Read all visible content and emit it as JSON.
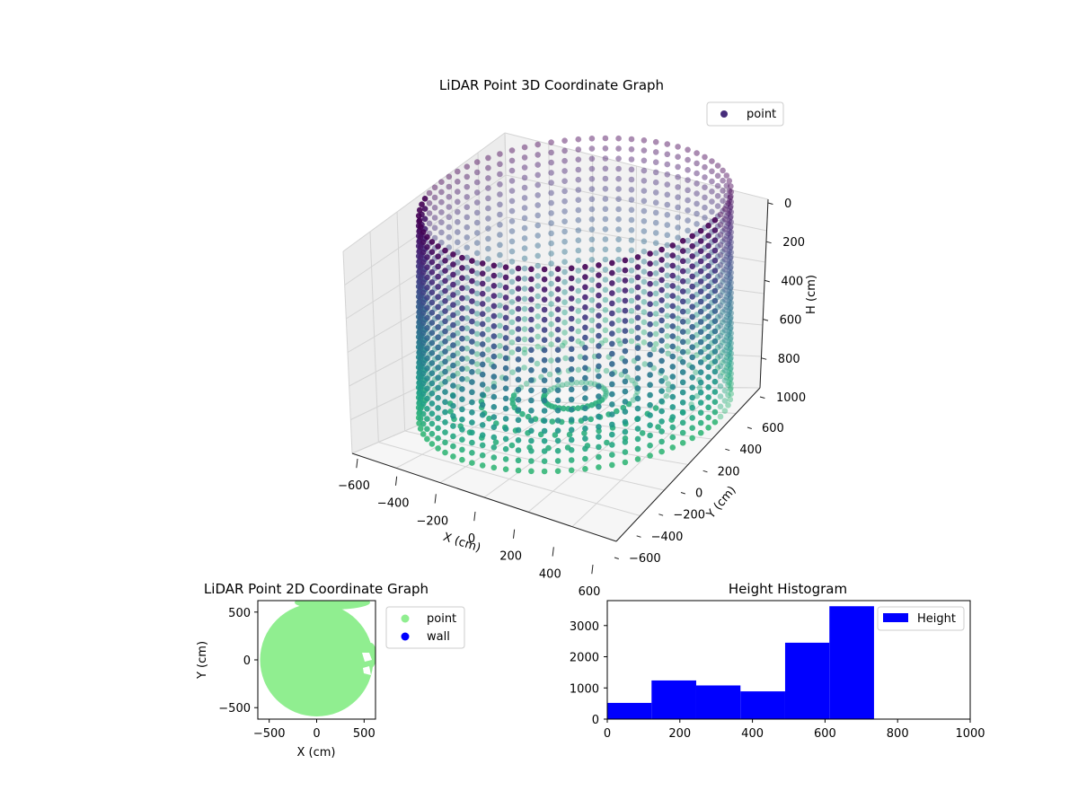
{
  "chart_data": [
    {
      "type": "scatter3d",
      "title": "LiDAR Point 3D Coordinate Graph",
      "xlabel": "X (cm)",
      "ylabel": "Y (cm)",
      "zlabel": "H (cm)",
      "xlim": [
        -600,
        600
      ],
      "ylim": [
        -600,
        600
      ],
      "zlim": [
        0,
        1000
      ],
      "z_inverted": true,
      "x_ticks": [
        "−600",
        "−400",
        "−200",
        "0",
        "200",
        "400",
        "600"
      ],
      "y_ticks": [
        "−600",
        "−400",
        "−200",
        "0",
        "200",
        "400",
        "600"
      ],
      "z_ticks": [
        "0",
        "200",
        "400",
        "600",
        "800",
        "1000"
      ],
      "legend": [
        {
          "name": "point",
          "color": "#472d7b"
        }
      ],
      "legend_position": "top-right",
      "colormap": "viridis",
      "shape": "cylindrical wall of points, radius about 600 cm, height 0 to 1000 cm"
    },
    {
      "type": "scatter",
      "title": "LiDAR Point 2D Coordinate Graph",
      "xlabel": "X (cm)",
      "ylabel": "Y (cm)",
      "xlim": [
        -620,
        620
      ],
      "ylim": [
        -620,
        620
      ],
      "x_ticks": [
        "−500",
        "0",
        "500"
      ],
      "y_ticks": [
        "500",
        "0",
        "−500"
      ],
      "legend": [
        {
          "name": "point",
          "color": "#90ee90"
        },
        {
          "name": "wall",
          "color": "#0000ff"
        }
      ],
      "legend_position": "outside-right",
      "shape": "filled disc of radius about 600 cm"
    },
    {
      "type": "histogram",
      "title": "Height Histogram",
      "xlim": [
        0,
        1000
      ],
      "ylim": [
        0,
        3800
      ],
      "x_ticks": [
        "0",
        "200",
        "400",
        "600",
        "800",
        "1000"
      ],
      "y_ticks": [
        "0",
        "1000",
        "2000",
        "3000"
      ],
      "legend": [
        {
          "name": "Height",
          "color": "#0000ff"
        }
      ],
      "legend_position": "top-right",
      "bins": [
        {
          "start": 0,
          "end": 122,
          "count": 520
        },
        {
          "start": 122,
          "end": 245,
          "count": 1240
        },
        {
          "start": 245,
          "end": 367,
          "count": 1080
        },
        {
          "start": 367,
          "end": 490,
          "count": 890
        },
        {
          "start": 490,
          "end": 612,
          "count": 2450
        },
        {
          "start": 612,
          "end": 735,
          "count": 3620
        }
      ]
    }
  ]
}
